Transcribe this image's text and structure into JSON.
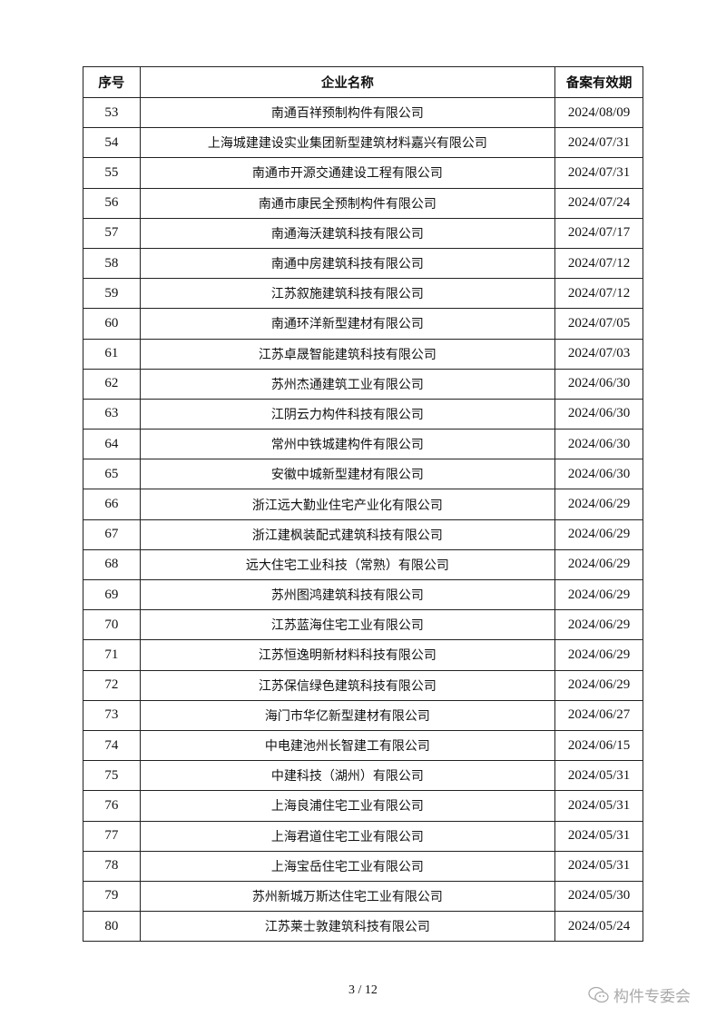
{
  "table": {
    "headers": [
      "序号",
      "企业名称",
      "备案有效期"
    ],
    "rows": [
      [
        "53",
        "南通百祥预制构件有限公司",
        "2024/08/09"
      ],
      [
        "54",
        "上海城建建设实业集团新型建筑材料嘉兴有限公司",
        "2024/07/31"
      ],
      [
        "55",
        "南通市开源交通建设工程有限公司",
        "2024/07/31"
      ],
      [
        "56",
        "南通市康民全预制构件有限公司",
        "2024/07/24"
      ],
      [
        "57",
        "南通海沃建筑科技有限公司",
        "2024/07/17"
      ],
      [
        "58",
        "南通中房建筑科技有限公司",
        "2024/07/12"
      ],
      [
        "59",
        "江苏叙施建筑科技有限公司",
        "2024/07/12"
      ],
      [
        "60",
        "南通环洋新型建材有限公司",
        "2024/07/05"
      ],
      [
        "61",
        "江苏卓晟智能建筑科技有限公司",
        "2024/07/03"
      ],
      [
        "62",
        "苏州杰通建筑工业有限公司",
        "2024/06/30"
      ],
      [
        "63",
        "江阴云力构件科技有限公司",
        "2024/06/30"
      ],
      [
        "64",
        "常州中铁城建构件有限公司",
        "2024/06/30"
      ],
      [
        "65",
        "安徽中城新型建材有限公司",
        "2024/06/30"
      ],
      [
        "66",
        "浙江远大勤业住宅产业化有限公司",
        "2024/06/29"
      ],
      [
        "67",
        "浙江建枫装配式建筑科技有限公司",
        "2024/06/29"
      ],
      [
        "68",
        "远大住宅工业科技（常熟）有限公司",
        "2024/06/29"
      ],
      [
        "69",
        "苏州图鸿建筑科技有限公司",
        "2024/06/29"
      ],
      [
        "70",
        "江苏蓝海住宅工业有限公司",
        "2024/06/29"
      ],
      [
        "71",
        "江苏恒逸明新材料科技有限公司",
        "2024/06/29"
      ],
      [
        "72",
        "江苏保信绿色建筑科技有限公司",
        "2024/06/29"
      ],
      [
        "73",
        "海门市华亿新型建材有限公司",
        "2024/06/27"
      ],
      [
        "74",
        "中电建池州长智建工有限公司",
        "2024/06/15"
      ],
      [
        "75",
        "中建科技（湖州）有限公司",
        "2024/05/31"
      ],
      [
        "76",
        "上海良浦住宅工业有限公司",
        "2024/05/31"
      ],
      [
        "77",
        "上海君道住宅工业有限公司",
        "2024/05/31"
      ],
      [
        "78",
        "上海宝岳住宅工业有限公司",
        "2024/05/31"
      ],
      [
        "79",
        "苏州新城万斯达住宅工业有限公司",
        "2024/05/30"
      ],
      [
        "80",
        "江苏莱士敦建筑科技有限公司",
        "2024/05/24"
      ]
    ]
  },
  "footer": {
    "page": "3 / 12"
  },
  "watermark": {
    "icon": "wechat-icon",
    "text": "构件专委会"
  }
}
